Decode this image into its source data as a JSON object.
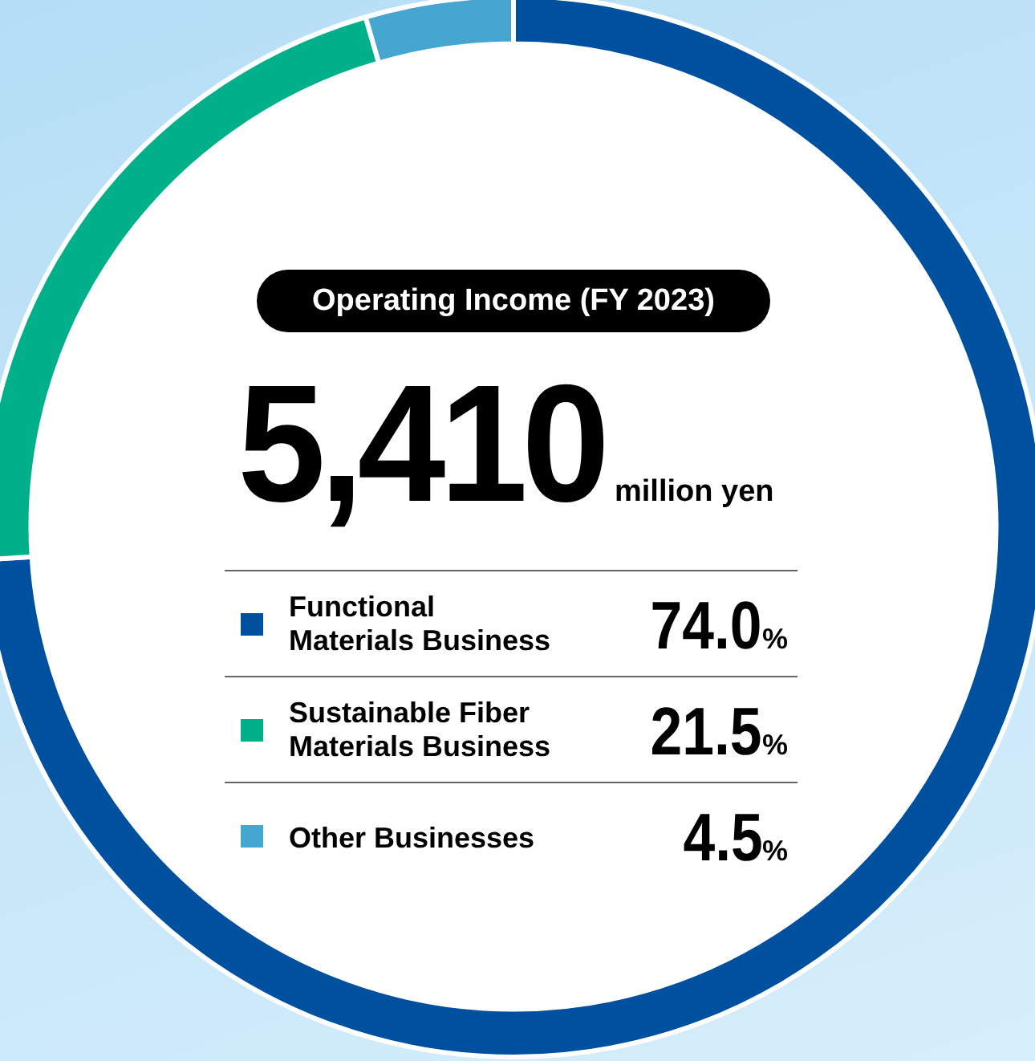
{
  "chart_data": {
    "type": "donut",
    "title": "Operating Income (FY 2023)",
    "annotations": [
      "5,410",
      "million yen"
    ],
    "categories": [
      "Functional\nMaterials Business",
      "Sustainable Fiber\nMaterials Business",
      "Other Businesses"
    ],
    "values": [
      74.0,
      21.5,
      4.5
    ],
    "colors": [
      "#0050a0",
      "#00b08a",
      "#46a6d0"
    ],
    "value_labels": [
      "74.0%",
      "21.5%",
      "4.5%"
    ],
    "legend": "center"
  }
}
